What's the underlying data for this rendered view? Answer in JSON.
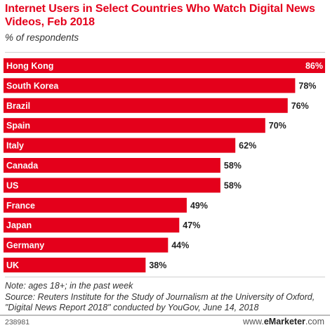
{
  "header": {
    "title": "Internet Users in Select Countries Who Watch Digital News Videos, Feb 2018",
    "subtitle": "% of respondents"
  },
  "chart_data": {
    "type": "bar",
    "orientation": "horizontal",
    "title": "Internet Users in Select Countries Who Watch Digital News Videos, Feb 2018",
    "subtitle": "% of respondents",
    "categories": [
      "Hong Kong",
      "South Korea",
      "Brazil",
      "Spain",
      "Italy",
      "Canada",
      "US",
      "France",
      "Japan",
      "Germany",
      "UK"
    ],
    "values": [
      86,
      78,
      76,
      70,
      62,
      58,
      58,
      49,
      47,
      44,
      38
    ],
    "value_labels": [
      "86%",
      "78%",
      "76%",
      "70%",
      "62%",
      "58%",
      "58%",
      "49%",
      "47%",
      "44%",
      "38%"
    ],
    "unit": "%",
    "xlim": [
      0,
      86
    ],
    "bar_color": "#e4001b",
    "grid": false,
    "legend": "none"
  },
  "footer": {
    "note": "Note: ages 18+; in the past week",
    "source": "Source: Reuters Institute for the Study of Journalism at the University of Oxford, \"Digital News Report 2018\" conducted by YouGov, June 14, 2018",
    "chart_id": "238981",
    "brand_prefix": "www.",
    "brand_name": "eMarketer",
    "brand_suffix": ".com"
  }
}
